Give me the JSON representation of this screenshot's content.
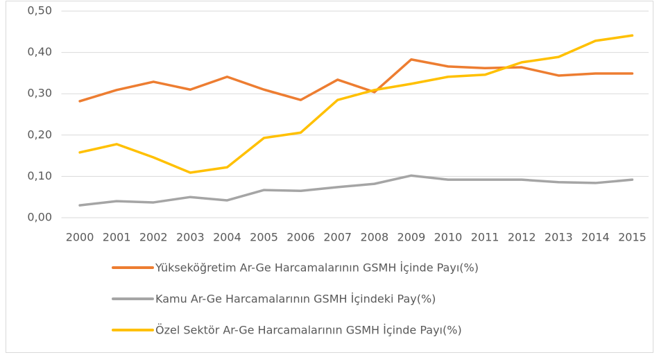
{
  "chart_data": {
    "type": "line",
    "categories": [
      "2000",
      "2001",
      "2002",
      "2003",
      "2004",
      "2005",
      "2006",
      "2007",
      "2008",
      "2009",
      "2010",
      "2011",
      "2012",
      "2013",
      "2014",
      "2015"
    ],
    "series": [
      {
        "name": "Yükseköğretim Ar-Ge Harcamalarının GSMH İçinde Payı(%)",
        "color": "#ed7d31",
        "values": [
          0.282,
          0.309,
          0.329,
          0.31,
          0.341,
          0.31,
          0.285,
          0.334,
          0.304,
          0.383,
          0.366,
          0.362,
          0.364,
          0.344,
          0.349,
          0.349
        ]
      },
      {
        "name": "Kamu Ar-Ge Harcamalarının GSMH İçindeki Pay(%)",
        "color": "#a5a5a5",
        "values": [
          0.03,
          0.04,
          0.037,
          0.05,
          0.042,
          0.067,
          0.065,
          0.074,
          0.082,
          0.102,
          0.092,
          0.092,
          0.092,
          0.086,
          0.084,
          0.092
        ]
      },
      {
        "name": "Özel Sektör Ar-Ge Harcamalarının GSMH İçinde Payı(%)",
        "color": "#ffc000",
        "values": [
          0.158,
          0.178,
          0.146,
          0.109,
          0.122,
          0.193,
          0.206,
          0.285,
          0.309,
          0.324,
          0.341,
          0.346,
          0.376,
          0.389,
          0.428,
          0.441
        ]
      }
    ],
    "ylim": [
      0,
      0.5
    ],
    "yticks": [
      {
        "value": 0,
        "label": "0,00"
      },
      {
        "value": 0.1,
        "label": "0,10"
      },
      {
        "value": 0.2,
        "label": "0,20"
      },
      {
        "value": 0.3,
        "label": "0,30"
      },
      {
        "value": 0.4,
        "label": "0,40"
      },
      {
        "value": 0.5,
        "label": "0,50"
      }
    ],
    "grid": true,
    "legend": "bottom"
  }
}
